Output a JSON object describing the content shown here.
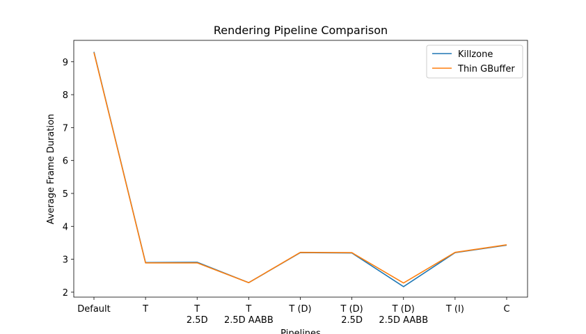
{
  "chart_data": {
    "type": "line",
    "title": "Rendering Pipeline Comparison",
    "xlabel": "Pipelines",
    "ylabel": "Average Frame Duration",
    "categories": [
      [
        "Default"
      ],
      [
        "T"
      ],
      [
        "T",
        "2.5D"
      ],
      [
        "T",
        "2.5D AABB"
      ],
      [
        "T (D)"
      ],
      [
        "T (D)",
        "2.5D"
      ],
      [
        "T (D)",
        "2.5D AABB"
      ],
      [
        "T (I)"
      ],
      [
        "C"
      ]
    ],
    "yticks": [
      2,
      3,
      4,
      5,
      6,
      7,
      8,
      9
    ],
    "ylim": [
      1.85,
      9.65
    ],
    "grid": false,
    "legend_position": "top-right",
    "series": [
      {
        "name": "Killzone",
        "color": "#1f77b4",
        "values": [
          9.3,
          2.9,
          2.91,
          2.29,
          3.2,
          3.19,
          2.17,
          3.2,
          3.43
        ]
      },
      {
        "name": "Thin GBuffer",
        "color": "#ff7f0e",
        "values": [
          9.28,
          2.89,
          2.89,
          2.29,
          3.21,
          3.2,
          2.28,
          3.21,
          3.44
        ]
      }
    ]
  }
}
